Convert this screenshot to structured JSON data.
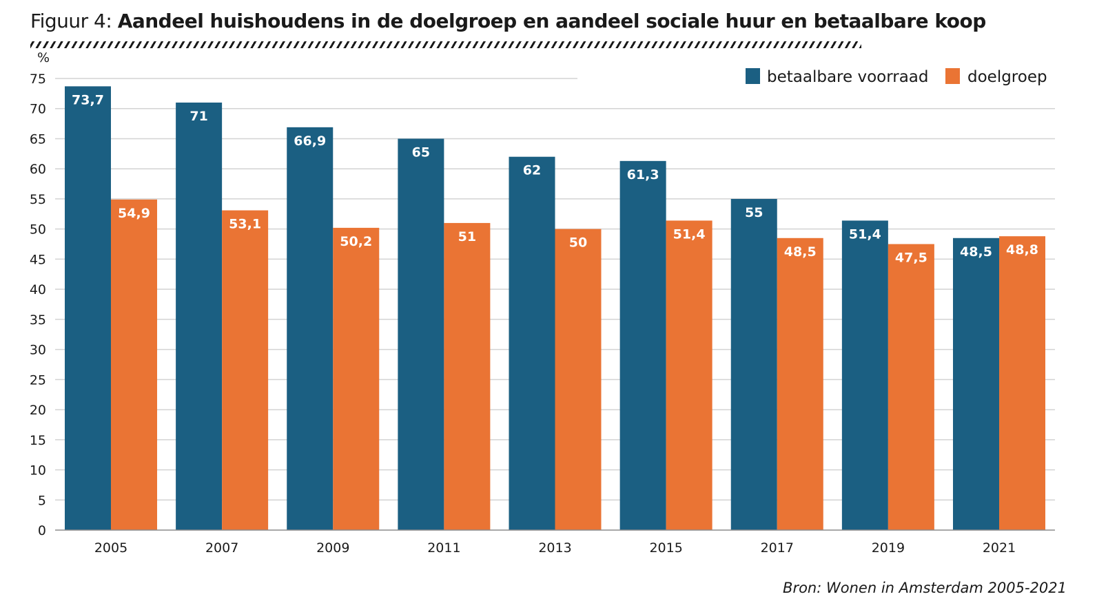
{
  "header": {
    "prefix": "Figuur 4:",
    "title": "Aandeel huishoudens in de doelgroep en aandeel sociale huur en betaalbare koop"
  },
  "source": "Bron: Wonen in Amsterdam 2005-2021",
  "colors": {
    "series_1": "#1b5f82",
    "series_2": "#ea7434",
    "grid": "#d3d3d3"
  },
  "chart_data": {
    "type": "bar",
    "title": "Aandeel huishoudens in de doelgroep en aandeel sociale huur en betaalbare koop",
    "ylabel": "%",
    "xlabel": "",
    "ylim": [
      0,
      75
    ],
    "yticks": [
      0,
      5,
      10,
      15,
      20,
      25,
      30,
      35,
      40,
      45,
      50,
      55,
      60,
      65,
      70,
      75
    ],
    "grid": true,
    "legend_position": "top-right",
    "categories": [
      "2005",
      "2007",
      "2009",
      "2011",
      "2013",
      "2015",
      "2017",
      "2019",
      "2021"
    ],
    "series": [
      {
        "name": "betaalbare voorraad",
        "color": "#1b5f82",
        "values": [
          73.7,
          71,
          66.9,
          65,
          62,
          61.3,
          55,
          51.4,
          48.5
        ],
        "labels": [
          "73,7",
          "71",
          "66,9",
          "65",
          "62",
          "61,3",
          "55",
          "51,4",
          "48,5"
        ]
      },
      {
        "name": "doelgroep",
        "color": "#ea7434",
        "values": [
          54.9,
          53.1,
          50.2,
          51,
          50,
          51.4,
          48.5,
          47.5,
          48.8
        ],
        "labels": [
          "54,9",
          "53,1",
          "50,2",
          "51",
          "50",
          "51,4",
          "48,5",
          "47,5",
          "48,8"
        ]
      }
    ]
  }
}
